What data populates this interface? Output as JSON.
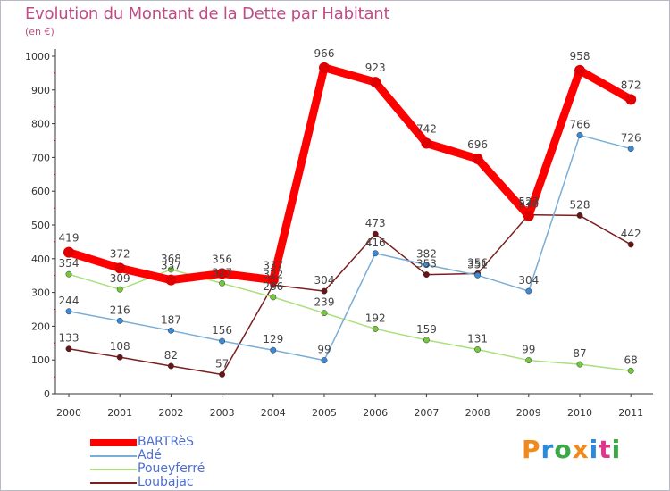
{
  "header": {
    "title": "Evolution du Montant de la Dette par Habitant",
    "subtitle": "(en €)"
  },
  "brand": {
    "name": "Proxiti",
    "colors": [
      "#f08a1c",
      "#2e89d6",
      "#39a845",
      "#f08a1c",
      "#2e89d6",
      "#e2348a",
      "#39a845"
    ]
  },
  "chart_data": {
    "type": "line",
    "title": "Evolution du Montant de la Dette par Habitant",
    "subtitle": "(en €)",
    "xlabel": "",
    "ylabel": "",
    "categories": [
      "2000",
      "2001",
      "2002",
      "2003",
      "2004",
      "2005",
      "2006",
      "2007",
      "2008",
      "2009",
      "2010",
      "2011"
    ],
    "ylim": [
      0,
      1000
    ],
    "yticks": [
      0,
      100,
      200,
      300,
      400,
      500,
      600,
      700,
      800,
      900,
      1000
    ],
    "grid": "none",
    "legend_position": "bottom-left",
    "series": [
      {
        "name": "BARTRèS",
        "color": "#ff0000",
        "marker": "#e00000",
        "bold": true,
        "values": [
          419,
          372,
          337,
          356,
          337,
          966,
          923,
          742,
          696,
          527,
          958,
          872
        ],
        "labels": [
          "419",
          "372",
          "337",
          "356",
          "337",
          "966",
          "923",
          "742",
          "696",
          "527",
          "958",
          "872"
        ]
      },
      {
        "name": "Adé",
        "color": "#7aaed6",
        "marker": "#3a8ad6",
        "values": [
          244,
          216,
          187,
          156,
          129,
          99,
          416,
          382,
          351,
          304,
          766,
          726
        ],
        "labels": [
          "244",
          "216",
          "187",
          "156",
          "129",
          "99",
          "416",
          "382",
          "351",
          "304",
          "766",
          "726"
        ]
      },
      {
        "name": "Poueyferré",
        "color": "#a9e07a",
        "marker": "#74c83b",
        "values": [
          354,
          309,
          368,
          327,
          286,
          239,
          192,
          159,
          131,
          99,
          87,
          68
        ],
        "labels": [
          "354",
          "309",
          "368",
          "327",
          "286",
          "239",
          "192",
          "159",
          "131",
          "99",
          "87",
          "68"
        ]
      },
      {
        "name": "Loubajac",
        "color": "#7a2020",
        "marker": "#6a1515",
        "values": [
          133,
          108,
          82,
          57,
          322,
          304,
          473,
          353,
          356,
          530,
          528,
          442
        ],
        "labels": [
          "133",
          "108",
          "82",
          "57",
          "322",
          "304",
          "473",
          "353",
          "356",
          "530",
          "528",
          "442"
        ]
      }
    ]
  }
}
